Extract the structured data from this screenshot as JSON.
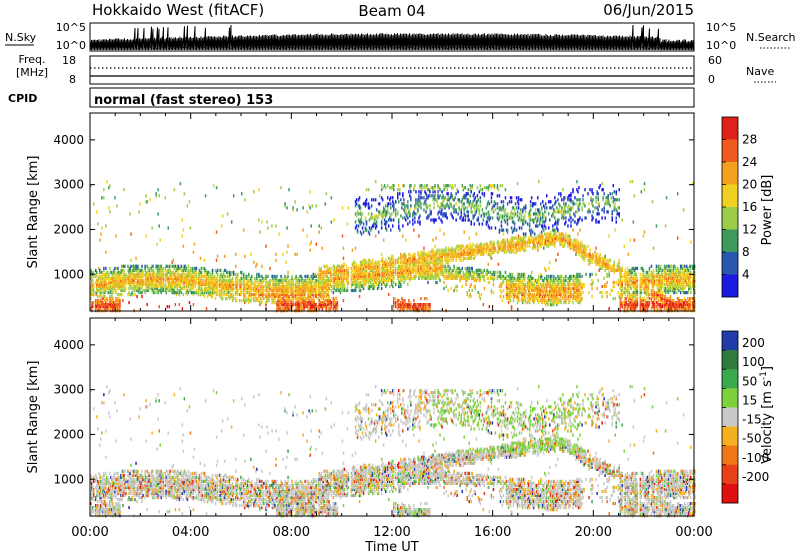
{
  "header": {
    "station": "Hokkaido West (fitACF)",
    "beam": "Beam 04",
    "date": "06/Jun/2015"
  },
  "noise_panel": {
    "left_label": "N.Sky",
    "right_label": "N.Search",
    "y_ticks": [
      "10^5",
      "10^0"
    ],
    "right_ticks": [
      "10^5",
      "10^0"
    ],
    "left_line": "solid",
    "right_line": "dotted"
  },
  "freq_panel": {
    "left_label_1": "Freq.",
    "left_label_2": "[MHz]",
    "right_label": "Nave",
    "left_ticks": [
      "18",
      "8"
    ],
    "right_ticks": [
      "60",
      "0"
    ]
  },
  "cpid": {
    "label": "CPID",
    "text": "normal (fast stereo) 153"
  },
  "x_axis": {
    "label": "Time UT",
    "ticks": [
      "00:00",
      "04:00",
      "08:00",
      "12:00",
      "16:00",
      "20:00",
      "00:00"
    ]
  },
  "power_colorbar": {
    "label": "Power [dB]",
    "ticks": [
      "28",
      "24",
      "20",
      "16",
      "12",
      "8",
      "4"
    ],
    "colors": [
      "#e0201a",
      "#f05a1e",
      "#f5a020",
      "#f0d020",
      "#9ccd4a",
      "#3d9a5c",
      "#2b56b0",
      "#1a1ae0"
    ]
  },
  "velocity_colorbar": {
    "label": "Velocity [m s",
    "label_sup": "-1",
    "label_end": "]",
    "ticks": [
      "200",
      "100",
      "50",
      "15",
      "-15",
      "-50",
      "-100",
      "-200"
    ],
    "colors": [
      "#1f3ca8",
      "#2f7a3c",
      "#3aa84c",
      "#7dd23c",
      "#c8c8c8",
      "#f5b020",
      "#f07818",
      "#e84018",
      "#e01010"
    ]
  },
  "chart_data": [
    {
      "type": "heatmap",
      "title": "Power",
      "xlabel": "Time UT",
      "ylabel": "Slant Range [km]",
      "x_ticks": [
        "00:00",
        "04:00",
        "08:00",
        "12:00",
        "16:00",
        "20:00",
        "00:00"
      ],
      "y_ticks": [
        1000,
        2000,
        3000,
        4000
      ],
      "xlim": [
        "00:00",
        "24:00"
      ],
      "ylim": [
        180,
        4600
      ],
      "colorbar": "Power [dB]",
      "colorbar_ticks": [
        4,
        8,
        12,
        16,
        20,
        24,
        28
      ]
    },
    {
      "type": "heatmap",
      "title": "Velocity",
      "xlabel": "Time UT",
      "ylabel": "Slant Range [km]",
      "x_ticks": [
        "00:00",
        "04:00",
        "08:00",
        "12:00",
        "16:00",
        "20:00",
        "00:00"
      ],
      "y_ticks": [
        1000,
        2000,
        3000,
        4000
      ],
      "xlim": [
        "00:00",
        "24:00"
      ],
      "ylim": [
        180,
        4600
      ],
      "colorbar": "Velocity [m s-1]",
      "colorbar_ticks": [
        -200,
        -100,
        -50,
        -15,
        15,
        50,
        100,
        200
      ]
    }
  ]
}
